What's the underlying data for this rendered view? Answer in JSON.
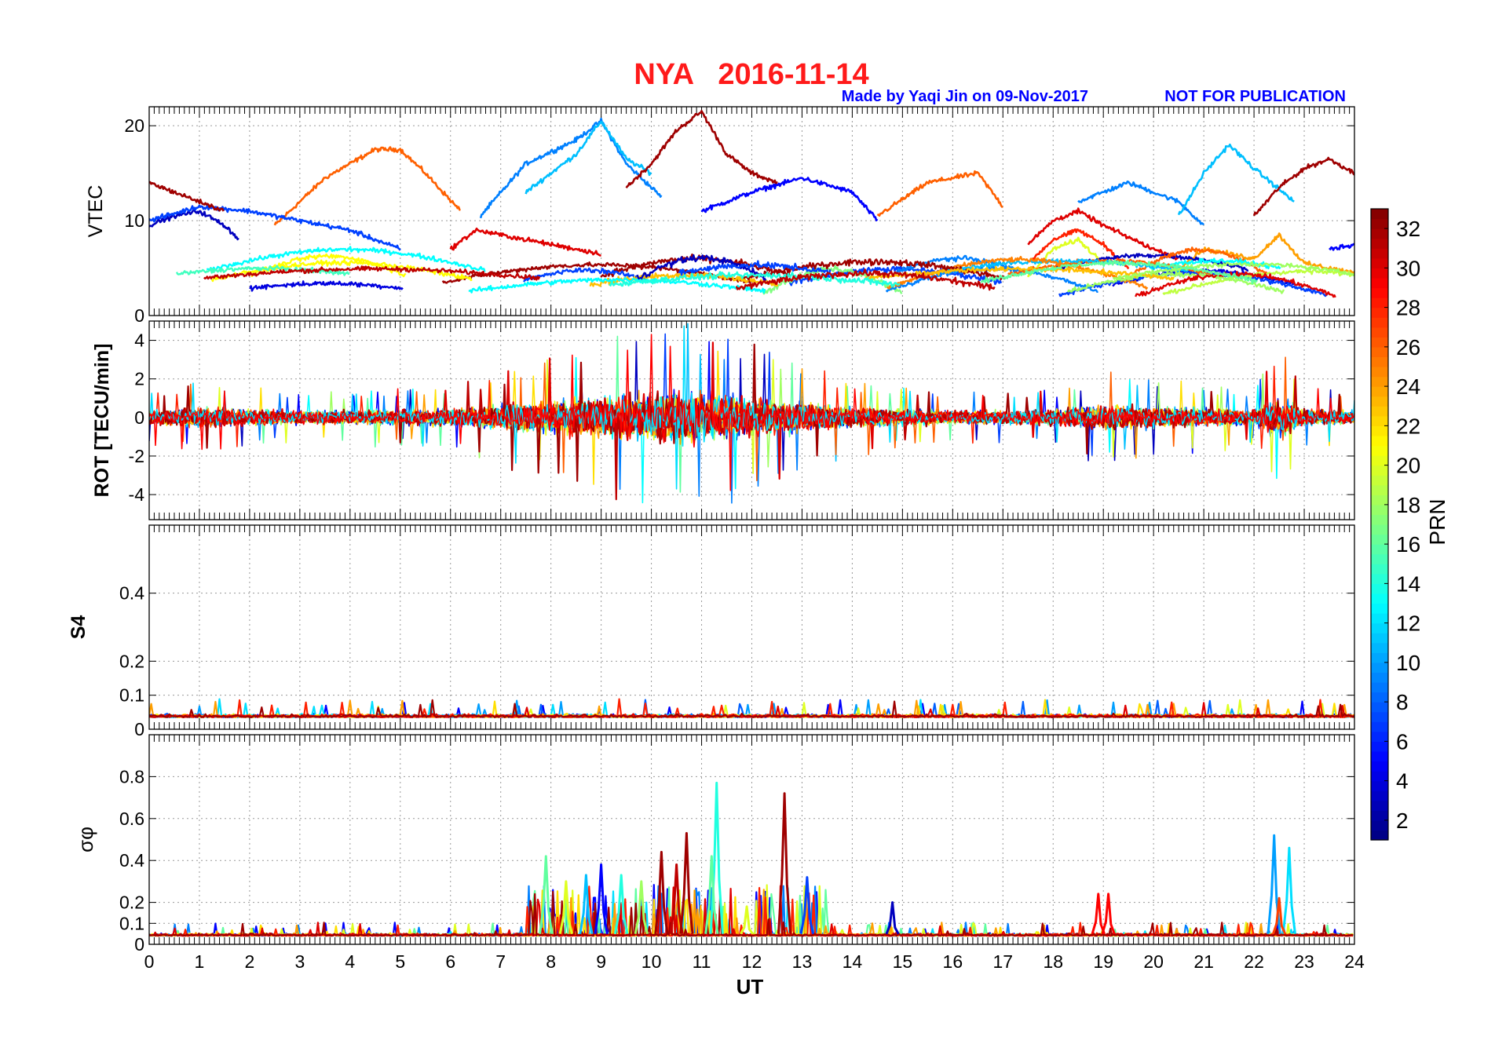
{
  "figure": {
    "title": "NYA   2016-11-14",
    "credit": "Made by Yaqi Jin on 09-Nov-2017",
    "notice": "NOT FOR PUBLICATION",
    "title_color": "#ff1a1a",
    "credit_color": "#0000ff"
  },
  "chart_data": [
    {
      "type": "line",
      "name": "vtec",
      "ylabel": "VTEC",
      "xlim": [
        0,
        24
      ],
      "ylim": [
        0,
        22
      ],
      "yticks": [
        0,
        10,
        20
      ],
      "grid": true,
      "description_series": [
        {
          "prn": 26,
          "x": [
            2.5,
            3.5,
            4.5,
            5.0,
            5.5,
            6.2
          ],
          "y": [
            9.5,
            14.5,
            17.5,
            17.5,
            15.0,
            11.0
          ]
        },
        {
          "prn": 9,
          "x": [
            6.6,
            7.5,
            8.5,
            9.0,
            9.5,
            10.2
          ],
          "y": [
            10.5,
            16.0,
            18.5,
            20.5,
            16.0,
            12.5
          ]
        },
        {
          "prn": 11,
          "x": [
            7.5,
            8.5,
            9.0,
            9.5,
            10.0
          ],
          "y": [
            13.0,
            17.0,
            20.5,
            16.5,
            15.0
          ]
        },
        {
          "prn": 32,
          "x": [
            9.5,
            10.0,
            10.5,
            11.0,
            11.5,
            12.0,
            12.5
          ],
          "y": [
            13.5,
            16.0,
            19.5,
            21.5,
            17.0,
            15.0,
            14.0
          ]
        },
        {
          "prn": 5,
          "x": [
            11.0,
            12.0,
            13.0,
            14.0,
            14.5
          ],
          "y": [
            11.0,
            13.0,
            14.5,
            13.0,
            10.0
          ]
        },
        {
          "prn": 26,
          "x": [
            14.5,
            15.5,
            16.5,
            17.0
          ],
          "y": [
            10.5,
            14.0,
            15.0,
            11.5
          ]
        },
        {
          "prn": 9,
          "x": [
            18.5,
            19.5,
            20.5,
            21.0
          ],
          "y": [
            12.0,
            14.0,
            12.0,
            9.5
          ]
        },
        {
          "prn": 11,
          "x": [
            20.5,
            21.0,
            21.5,
            22.0,
            22.8
          ],
          "y": [
            10.5,
            15.0,
            18.0,
            15.5,
            12.0
          ]
        },
        {
          "prn": 32,
          "x": [
            22.0,
            22.5,
            23.0,
            23.5,
            24.0
          ],
          "y": [
            10.5,
            13.5,
            15.5,
            16.5,
            15.0
          ]
        },
        {
          "prn": 3,
          "x": [
            0.0,
            0.5,
            1.0,
            1.5,
            1.8
          ],
          "y": [
            9.5,
            10.5,
            11.0,
            9.5,
            8.0
          ]
        },
        {
          "prn": 7,
          "x": [
            0.0,
            1.0,
            2.0,
            3.0,
            4.0,
            5.0
          ],
          "y": [
            10.0,
            11.5,
            11.0,
            10.0,
            9.0,
            7.0
          ]
        },
        {
          "prn": 32,
          "x": [
            0.0,
            0.5,
            1.0,
            1.5
          ],
          "y": [
            14.0,
            13.0,
            12.0,
            11.0
          ]
        },
        {
          "prn": 30,
          "x": [
            6.0,
            6.5,
            7.0,
            8.0,
            9.0
          ],
          "y": [
            7.0,
            9.0,
            8.5,
            7.5,
            6.5
          ]
        },
        {
          "prn": 30,
          "x": [
            17.5,
            18.0,
            18.5,
            19.0,
            20.0,
            20.5
          ],
          "y": [
            7.5,
            10.0,
            11.0,
            9.5,
            7.0,
            6.0
          ]
        },
        {
          "prn": 28,
          "x": [
            17.5,
            18.0,
            18.5,
            19.0,
            19.5
          ],
          "y": [
            5.5,
            8.0,
            9.0,
            7.5,
            5.0
          ]
        },
        {
          "prn": 20,
          "x": [
            17.5,
            18.0,
            18.5,
            19.0
          ],
          "y": [
            4.0,
            7.0,
            8.0,
            5.5
          ]
        },
        {
          "prn": 24,
          "x": [
            20.5,
            21.0,
            22.0,
            22.5,
            23.0,
            24.0
          ],
          "y": [
            5.0,
            7.0,
            6.0,
            8.5,
            5.5,
            4.5
          ]
        },
        {
          "prn": 5,
          "x": [
            23.5,
            24.0
          ],
          "y": [
            7.0,
            7.5
          ]
        }
      ]
    },
    {
      "type": "line",
      "name": "rot",
      "ylabel": "ROT [TECU/min]",
      "xlim": [
        0,
        24
      ],
      "ylim": [
        -5.3,
        5.0
      ],
      "yticks": [
        -4,
        -2,
        0,
        2,
        4
      ],
      "grid": true,
      "activity_envelope": {
        "x": [
          0,
          1,
          3,
          6,
          8,
          10.5,
          12,
          14,
          16,
          18,
          19,
          22,
          22.5,
          23,
          24
        ],
        "y": [
          0.8,
          1.2,
          0.8,
          1.0,
          2.0,
          3.2,
          2.4,
          1.2,
          0.8,
          0.9,
          1.5,
          0.9,
          2.5,
          1.0,
          0.8
        ]
      }
    },
    {
      "type": "line",
      "name": "s4",
      "ylabel": "S4",
      "xlim": [
        0,
        24
      ],
      "ylim": [
        0,
        0.6
      ],
      "yticks": [
        0,
        0.1,
        0.2,
        0.4
      ],
      "grid": true,
      "baseline": 0.04
    },
    {
      "type": "line",
      "name": "sigma_phi",
      "ylabel": "σφ",
      "xlabel": "UT",
      "xlim": [
        0,
        24
      ],
      "ylim": [
        0,
        1.0
      ],
      "yticks": [
        0,
        0.1,
        0.2,
        0.4,
        0.6,
        0.8
      ],
      "xticks": [
        0,
        1,
        2,
        3,
        4,
        5,
        6,
        7,
        8,
        9,
        10,
        11,
        12,
        13,
        14,
        15,
        16,
        17,
        18,
        19,
        20,
        21,
        22,
        23,
        24
      ],
      "grid": true,
      "spikes": [
        {
          "prn": 16,
          "x": 7.9,
          "y": 0.42
        },
        {
          "prn": 20,
          "x": 8.3,
          "y": 0.3
        },
        {
          "prn": 11,
          "x": 8.7,
          "y": 0.33
        },
        {
          "prn": 5,
          "x": 9.0,
          "y": 0.38
        },
        {
          "prn": 14,
          "x": 9.4,
          "y": 0.33
        },
        {
          "prn": 18,
          "x": 9.8,
          "y": 0.3
        },
        {
          "prn": 32,
          "x": 10.2,
          "y": 0.44
        },
        {
          "prn": 31,
          "x": 10.5,
          "y": 0.38
        },
        {
          "prn": 32,
          "x": 10.7,
          "y": 0.53
        },
        {
          "prn": 14,
          "x": 11.3,
          "y": 0.77
        },
        {
          "prn": 16,
          "x": 11.2,
          "y": 0.42
        },
        {
          "prn": 20,
          "x": 11.9,
          "y": 0.18
        },
        {
          "prn": 32,
          "x": 12.65,
          "y": 0.72
        },
        {
          "prn": 7,
          "x": 13.1,
          "y": 0.32
        },
        {
          "prn": 3,
          "x": 14.8,
          "y": 0.2
        },
        {
          "prn": 29,
          "x": 18.9,
          "y": 0.24
        },
        {
          "prn": 29,
          "x": 19.1,
          "y": 0.24
        },
        {
          "prn": 10,
          "x": 22.4,
          "y": 0.52
        },
        {
          "prn": 12,
          "x": 22.7,
          "y": 0.46
        },
        {
          "prn": 27,
          "x": 22.5,
          "y": 0.22
        }
      ]
    }
  ],
  "colorbar": {
    "label": "PRN",
    "range": [
      1,
      33
    ],
    "ticks": [
      2,
      4,
      6,
      8,
      10,
      12,
      14,
      16,
      18,
      20,
      22,
      24,
      26,
      28,
      30,
      32
    ]
  }
}
